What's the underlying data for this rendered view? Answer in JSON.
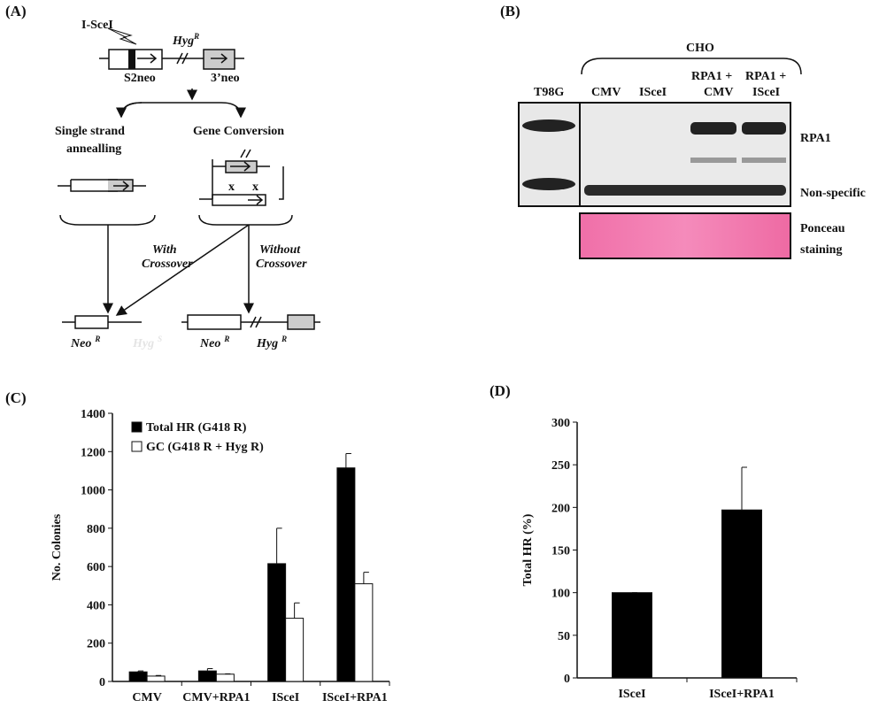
{
  "panel_labels": [
    "(A)",
    "(B)",
    "(C)",
    "(D)"
  ],
  "diagram": {
    "enzyme": "I-SceI",
    "hyg_top": {
      "text": "Hyg",
      "sup": "R"
    },
    "s2neo": "S2neo",
    "neo3": "3’neo",
    "ssa": [
      "Single strand",
      "annealling"
    ],
    "gc": "Gene Conversion",
    "cross_marks": [
      "x",
      "x"
    ],
    "with_crossover": [
      "With",
      "Crossover"
    ],
    "without_crossover": [
      "Without",
      "Crossover"
    ],
    "neo_left": {
      "text": "Neo",
      "sup": "R"
    },
    "hyg_left": {
      "text": "Hyg",
      "sup": "S"
    },
    "neo_right": {
      "text": "Neo",
      "sup": "R"
    },
    "hyg_right": {
      "text": "Hyg",
      "sup": "R"
    }
  },
  "blot": {
    "group": "CHO",
    "lanes": [
      "T98G",
      "CMV",
      "ISceI",
      [
        "RPA1 +",
        "CMV"
      ],
      [
        "RPA1 +",
        "ISceI"
      ]
    ],
    "bands": [
      "RPA1",
      "Non-specific"
    ],
    "stain": [
      "Ponceau",
      "staining"
    ]
  },
  "chart_data": [
    {
      "type": "bar",
      "ylabel": "No. Colonies",
      "categories": [
        "CMV",
        "CMV+RPA1",
        "ISceI",
        "ISceI+RPA1"
      ],
      "series": [
        {
          "name": "Total HR (G418 R)",
          "color": "#000000",
          "values": [
            50,
            55,
            615,
            1115
          ],
          "errors": [
            5,
            12,
            185,
            75
          ]
        },
        {
          "name": "GC (G418 R + Hyg R)",
          "color": "#ffffff",
          "values": [
            28,
            38,
            330,
            510
          ],
          "errors": [
            3,
            2,
            80,
            60
          ]
        }
      ],
      "ylim": [
        0,
        1400
      ],
      "yticks": [
        0,
        200,
        400,
        600,
        800,
        1000,
        1200,
        1400
      ],
      "legend": "upper left"
    },
    {
      "type": "bar",
      "ylabel": "Total HR (%)",
      "categories": [
        "ISceI",
        "ISceI+RPA1"
      ],
      "series": [
        {
          "name": null,
          "color": "#000000",
          "values": [
            100,
            197
          ],
          "errors": [
            0,
            50
          ]
        }
      ],
      "ylim": [
        0,
        300
      ],
      "yticks": [
        0,
        50,
        100,
        150,
        200,
        250,
        300
      ]
    }
  ]
}
